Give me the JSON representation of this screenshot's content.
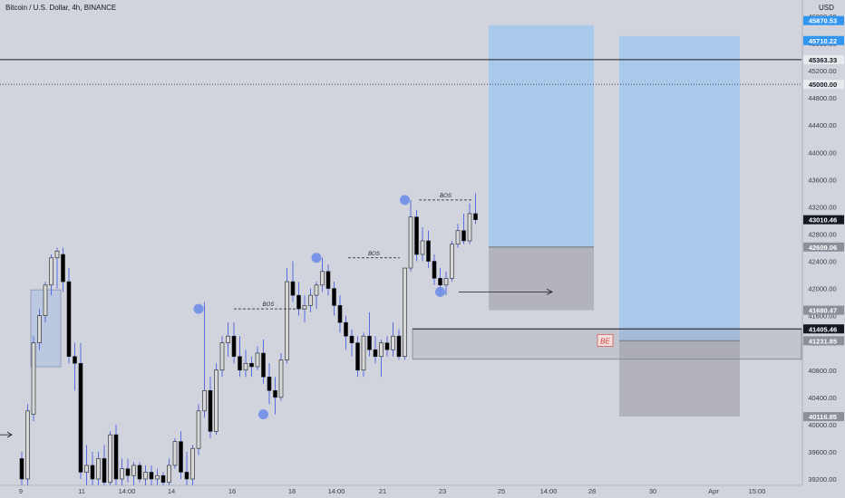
{
  "header": {
    "title": "Bitcoin / U.S. Dollar, 4h, BINANCE",
    "currency": "USD"
  },
  "colors": {
    "background": "#d1d4dc",
    "bull_body": "#d8d8d8",
    "bear_body": "#000000",
    "wick": "#4a62e0",
    "long_target_zone": "#a9c9ea",
    "long_stop_zone": "#b3b3bb",
    "swing_marker": "#6f8ee8",
    "label_default": "#e9eaee",
    "label_dark": "#131722",
    "label_blue": "#2f95ef",
    "label_gray": "#8c8f98",
    "be_text": "#d13a3a"
  },
  "chart_data": {
    "type": "candlestick",
    "symbol": "Bitcoin / U.S. Dollar",
    "timeframe": "4h",
    "exchange": "BINANCE",
    "y_axis": {
      "ticks": [
        39200,
        39600,
        40000,
        40400,
        40800,
        41200,
        41600,
        42000,
        42400,
        42800,
        43200,
        43600,
        44000,
        44400,
        44800,
        45200,
        45600,
        46000
      ],
      "tick_labels": [
        "39200.00",
        "39600.00",
        "40000.00",
        "40400.00",
        "40800.00",
        "41200.00",
        "41600.00",
        "42000.00",
        "42400.00",
        "42800.00",
        "43200.00",
        "43600.00",
        "44000.00",
        "44400.00",
        "44800.00",
        "45200.00",
        "45600.00",
        "46000.00"
      ],
      "range": [
        39000,
        46100
      ]
    },
    "x_axis": {
      "tick_labels": [
        "9",
        "11",
        "14:00",
        "14",
        "16",
        "18",
        "14:00",
        "21",
        "23",
        "25",
        "14:00",
        "28",
        "30",
        "Apr",
        "15:00"
      ]
    },
    "candles": [
      {
        "o": 39500,
        "h": 39600,
        "l": 39100,
        "c": 39200
      },
      {
        "o": 39200,
        "h": 40300,
        "l": 39100,
        "c": 40200
      },
      {
        "o": 40150,
        "h": 41300,
        "l": 40050,
        "c": 41200
      },
      {
        "o": 41200,
        "h": 41700,
        "l": 41100,
        "c": 41600
      },
      {
        "o": 41600,
        "h": 42100,
        "l": 41500,
        "c": 42050
      },
      {
        "o": 42050,
        "h": 42500,
        "l": 41900,
        "c": 42450
      },
      {
        "o": 42450,
        "h": 42600,
        "l": 42000,
        "c": 42550
      },
      {
        "o": 42500,
        "h": 42600,
        "l": 41950,
        "c": 42100
      },
      {
        "o": 42100,
        "h": 42300,
        "l": 40900,
        "c": 41000
      },
      {
        "o": 41000,
        "h": 41200,
        "l": 40500,
        "c": 40900
      },
      {
        "o": 40900,
        "h": 41200,
        "l": 39200,
        "c": 39300
      },
      {
        "o": 39300,
        "h": 39700,
        "l": 39100,
        "c": 39400
      },
      {
        "o": 39400,
        "h": 39600,
        "l": 39100,
        "c": 39200
      },
      {
        "o": 39200,
        "h": 39600,
        "l": 39050,
        "c": 39500
      },
      {
        "o": 39500,
        "h": 39700,
        "l": 39100,
        "c": 39150
      },
      {
        "o": 39150,
        "h": 39900,
        "l": 39100,
        "c": 39850
      },
      {
        "o": 39850,
        "h": 40000,
        "l": 39100,
        "c": 39200
      },
      {
        "o": 39200,
        "h": 39500,
        "l": 39100,
        "c": 39350
      },
      {
        "o": 39350,
        "h": 39500,
        "l": 39150,
        "c": 39250
      },
      {
        "o": 39250,
        "h": 39450,
        "l": 39100,
        "c": 39400
      },
      {
        "o": 39400,
        "h": 39450,
        "l": 39150,
        "c": 39200
      },
      {
        "o": 39200,
        "h": 39400,
        "l": 39100,
        "c": 39300
      },
      {
        "o": 39300,
        "h": 39400,
        "l": 39100,
        "c": 39200
      },
      {
        "o": 39200,
        "h": 39350,
        "l": 39100,
        "c": 39250
      },
      {
        "o": 39250,
        "h": 39300,
        "l": 39050,
        "c": 39150
      },
      {
        "o": 39150,
        "h": 39500,
        "l": 39050,
        "c": 39400
      },
      {
        "o": 39400,
        "h": 39800,
        "l": 39350,
        "c": 39750
      },
      {
        "o": 39750,
        "h": 39900,
        "l": 39200,
        "c": 39300
      },
      {
        "o": 39300,
        "h": 39600,
        "l": 39100,
        "c": 39200
      },
      {
        "o": 39200,
        "h": 39700,
        "l": 39100,
        "c": 39650
      },
      {
        "o": 39650,
        "h": 40300,
        "l": 39550,
        "c": 40200
      },
      {
        "o": 40200,
        "h": 41800,
        "l": 40100,
        "c": 40500
      },
      {
        "o": 40500,
        "h": 40700,
        "l": 39800,
        "c": 39900
      },
      {
        "o": 39900,
        "h": 40900,
        "l": 39850,
        "c": 40800
      },
      {
        "o": 40800,
        "h": 41300,
        "l": 40700,
        "c": 41200
      },
      {
        "o": 41200,
        "h": 41500,
        "l": 41000,
        "c": 41300
      },
      {
        "o": 41300,
        "h": 41500,
        "l": 40900,
        "c": 41000
      },
      {
        "o": 41000,
        "h": 41300,
        "l": 40700,
        "c": 40800
      },
      {
        "o": 40800,
        "h": 41100,
        "l": 40700,
        "c": 40900
      },
      {
        "o": 40900,
        "h": 41000,
        "l": 40700,
        "c": 40850
      },
      {
        "o": 40850,
        "h": 41150,
        "l": 40800,
        "c": 41050
      },
      {
        "o": 41050,
        "h": 41250,
        "l": 40600,
        "c": 40700
      },
      {
        "o": 40700,
        "h": 40900,
        "l": 40300,
        "c": 40500
      },
      {
        "o": 40500,
        "h": 40700,
        "l": 40150,
        "c": 40400
      },
      {
        "o": 40400,
        "h": 41050,
        "l": 40350,
        "c": 40950
      },
      {
        "o": 40950,
        "h": 42300,
        "l": 40900,
        "c": 42100
      },
      {
        "o": 42100,
        "h": 42400,
        "l": 41800,
        "c": 41900
      },
      {
        "o": 41900,
        "h": 42100,
        "l": 41600,
        "c": 41700
      },
      {
        "o": 41700,
        "h": 41900,
        "l": 41500,
        "c": 41750
      },
      {
        "o": 41750,
        "h": 42000,
        "l": 41650,
        "c": 41900
      },
      {
        "o": 41900,
        "h": 42100,
        "l": 41700,
        "c": 42050
      },
      {
        "o": 42050,
        "h": 42450,
        "l": 41950,
        "c": 42250
      },
      {
        "o": 42250,
        "h": 42350,
        "l": 41900,
        "c": 42000
      },
      {
        "o": 42000,
        "h": 42100,
        "l": 41600,
        "c": 41750
      },
      {
        "o": 41750,
        "h": 41900,
        "l": 41350,
        "c": 41500
      },
      {
        "o": 41500,
        "h": 41600,
        "l": 41100,
        "c": 41300
      },
      {
        "o": 41300,
        "h": 41400,
        "l": 41000,
        "c": 41200
      },
      {
        "o": 41200,
        "h": 41300,
        "l": 40700,
        "c": 40800
      },
      {
        "o": 40800,
        "h": 41350,
        "l": 40700,
        "c": 41300
      },
      {
        "o": 41300,
        "h": 41650,
        "l": 41000,
        "c": 41100
      },
      {
        "o": 41100,
        "h": 41300,
        "l": 40900,
        "c": 41000
      },
      {
        "o": 41000,
        "h": 41250,
        "l": 40700,
        "c": 41200
      },
      {
        "o": 41200,
        "h": 41300,
        "l": 41000,
        "c": 41100
      },
      {
        "o": 41100,
        "h": 41500,
        "l": 41000,
        "c": 41300
      },
      {
        "o": 41300,
        "h": 41400,
        "l": 40950,
        "c": 41000
      },
      {
        "o": 41000,
        "h": 42300,
        "l": 40950,
        "c": 42300
      },
      {
        "o": 42300,
        "h": 43300,
        "l": 42250,
        "c": 43050
      },
      {
        "o": 43050,
        "h": 43150,
        "l": 42400,
        "c": 42500
      },
      {
        "o": 42500,
        "h": 42900,
        "l": 42400,
        "c": 42700
      },
      {
        "o": 42700,
        "h": 42850,
        "l": 42300,
        "c": 42400
      },
      {
        "o": 42400,
        "h": 42500,
        "l": 42050,
        "c": 42150
      },
      {
        "o": 42150,
        "h": 42300,
        "l": 41900,
        "c": 42050
      },
      {
        "o": 42050,
        "h": 42250,
        "l": 41900,
        "c": 42150
      },
      {
        "o": 42150,
        "h": 42700,
        "l": 42100,
        "c": 42650
      },
      {
        "o": 42650,
        "h": 42950,
        "l": 42600,
        "c": 42850
      },
      {
        "o": 42850,
        "h": 43100,
        "l": 42650,
        "c": 42700
      },
      {
        "o": 42700,
        "h": 43250,
        "l": 42650,
        "c": 43100
      },
      {
        "o": 43100,
        "h": 43400,
        "l": 42950,
        "c": 43010
      }
    ],
    "annotations": {
      "bos_labels": [
        {
          "text": "BOS",
          "level": 41700
        },
        {
          "text": "BOS",
          "level": 42450
        },
        {
          "text": "BOS",
          "level": 43300
        }
      ],
      "swing_markers": [
        {
          "candle": 30,
          "price": 41700
        },
        {
          "candle": 41,
          "price": 40150
        },
        {
          "candle": 50,
          "price": 42450
        },
        {
          "candle": 65,
          "price": 43300
        },
        {
          "candle": 71,
          "price": 41950
        }
      ],
      "be_label": "BE",
      "horizontal_lines": [
        45363.33,
        45000.0,
        41405.46
      ],
      "positions": [
        {
          "type": "long",
          "target": 45870.53,
          "entry": 42609.06,
          "stop": 41680.47
        },
        {
          "type": "long",
          "target": 45710.22,
          "entry": 41231.85,
          "stop": 40116.85
        }
      ]
    },
    "price_labels": [
      {
        "text": "45870.53",
        "value": 45870.53,
        "style": "blue"
      },
      {
        "text": "45710.22",
        "value": 45710.22,
        "style": "blue"
      },
      {
        "text": "45363.33",
        "value": 45363.33,
        "style": "default"
      },
      {
        "text": "45000.00",
        "value": 45000.0,
        "style": "default"
      },
      {
        "text": "43010.46",
        "value": 43010.46,
        "style": "dark"
      },
      {
        "text": "42609.06",
        "value": 42609.06,
        "style": "gray"
      },
      {
        "text": "41680.47",
        "value": 41680.47,
        "style": "gray"
      },
      {
        "text": "41405.46",
        "value": 41405.46,
        "style": "dark"
      },
      {
        "text": "41231.85",
        "value": 41231.85,
        "style": "gray"
      },
      {
        "text": "40116.85",
        "value": 40116.85,
        "style": "gray"
      }
    ]
  }
}
